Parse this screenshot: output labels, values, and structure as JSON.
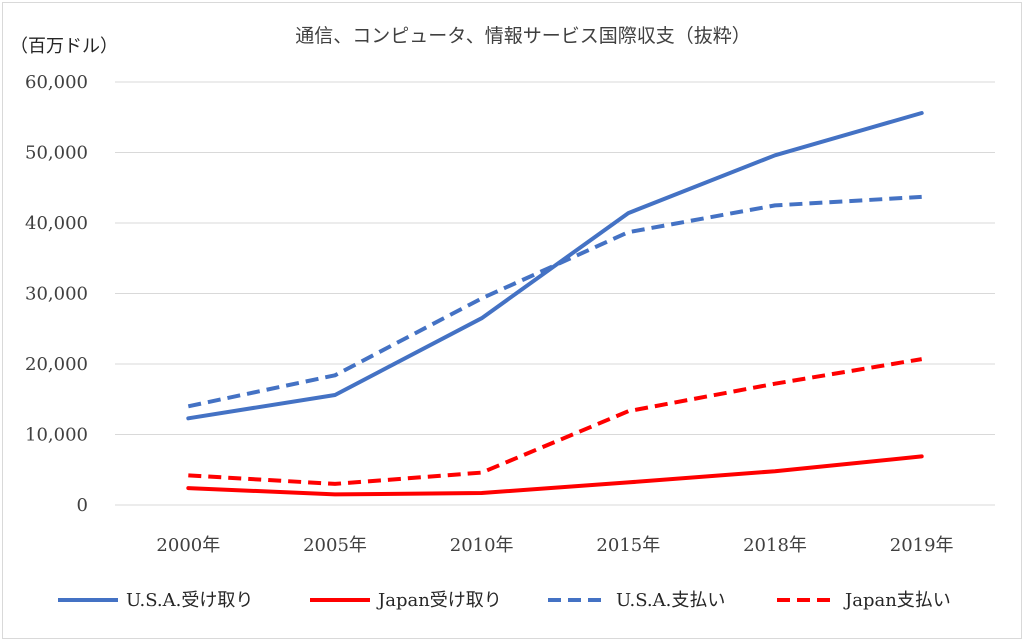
{
  "chart_data": {
    "type": "line",
    "title": "通信、コンピュータ、情報サービス国際収支（抜粋）",
    "ylabel": "（百万ドル）",
    "xlabel": "",
    "categories": [
      "2000年",
      "2005年",
      "2010年",
      "2015年",
      "2018年",
      "2019年"
    ],
    "ylim": [
      0,
      60000
    ],
    "yticks": [
      0,
      10000,
      20000,
      30000,
      40000,
      50000,
      60000
    ],
    "ytick_labels": [
      "0",
      "10,000",
      "20,000",
      "30,000",
      "40,000",
      "50,000",
      "60,000"
    ],
    "grid": true,
    "legend_position": "bottom",
    "series": [
      {
        "name": "U.S.A.受け取り",
        "values": [
          12300,
          15600,
          26500,
          41400,
          49600,
          55600
        ],
        "color": "#4472c4",
        "dash": "solid"
      },
      {
        "name": "Japan受け取り",
        "values": [
          2400,
          1500,
          1700,
          3200,
          4800,
          6900
        ],
        "color": "#ff0000",
        "dash": "solid"
      },
      {
        "name": "U.S.A.支払い",
        "values": [
          14000,
          18400,
          29300,
          38700,
          42500,
          43700
        ],
        "color": "#4472c4",
        "dash": "dashed"
      },
      {
        "name": "Japan支払い",
        "values": [
          4200,
          3000,
          4600,
          13300,
          17200,
          20700
        ],
        "color": "#ff0000",
        "dash": "dashed"
      }
    ]
  }
}
